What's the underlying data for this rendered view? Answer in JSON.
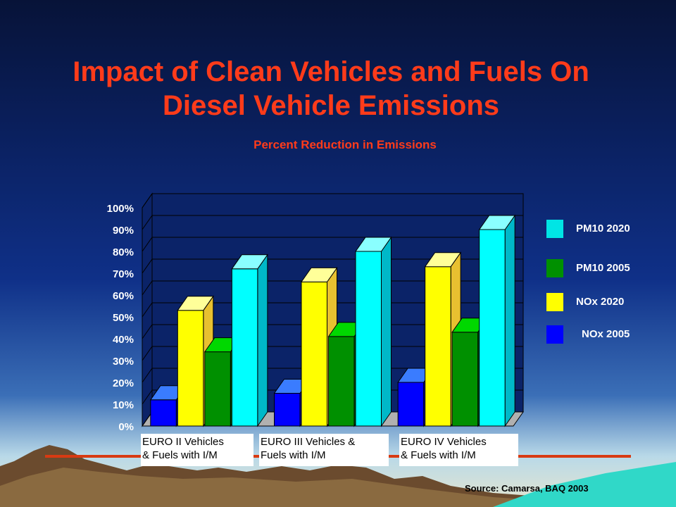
{
  "slide": {
    "title_line1": "Impact of Clean Vehicles and Fuels On",
    "title_line2": "Diesel Vehicle Emissions",
    "source": "Source: Camarsa, BAQ 2003"
  },
  "colors": {
    "title": "#ff3b1a",
    "nox_2005": "#0000ff",
    "nox_2020": "#ffff00",
    "pm10_2005": "#009000",
    "pm10_2020": "#00e5e5"
  },
  "legend": [
    {
      "label": "PM10 2020",
      "color": "#00e5e5"
    },
    {
      "label": "PM10 2005",
      "color": "#009000"
    },
    {
      "label": "NOx 2020",
      "color": "#ffff00"
    },
    {
      "label": "NOx 2005",
      "color": "#0000ff"
    }
  ],
  "chart_data": {
    "type": "bar",
    "title": "Percent Reduction in Emissions",
    "categories": [
      "EURO II Vehicles & Fuels with I/M",
      "EURO III Vehicles & Fuels with I/M",
      "EURO IV Vehicles & Fuels with I/M"
    ],
    "category_lines": [
      [
        "EURO II Vehicles",
        "& Fuels with I/M"
      ],
      [
        "EURO III Vehicles &",
        "Fuels with I/M"
      ],
      [
        "EURO IV Vehicles",
        "& Fuels with I/M"
      ]
    ],
    "series": [
      {
        "name": "NOx 2005",
        "values": [
          12,
          15,
          20
        ]
      },
      {
        "name": "NOx 2020",
        "values": [
          53,
          66,
          73
        ]
      },
      {
        "name": "PM10 2005",
        "values": [
          34,
          41,
          43
        ]
      },
      {
        "name": "PM10 2020",
        "values": [
          72,
          80,
          90
        ]
      }
    ],
    "ylim": [
      0,
      100
    ],
    "yticks": [
      "0%",
      "10%",
      "20%",
      "30%",
      "40%",
      "50%",
      "60%",
      "70%",
      "80%",
      "90%",
      "100%"
    ],
    "grid": true,
    "style": "3d",
    "legend_position": "right"
  }
}
